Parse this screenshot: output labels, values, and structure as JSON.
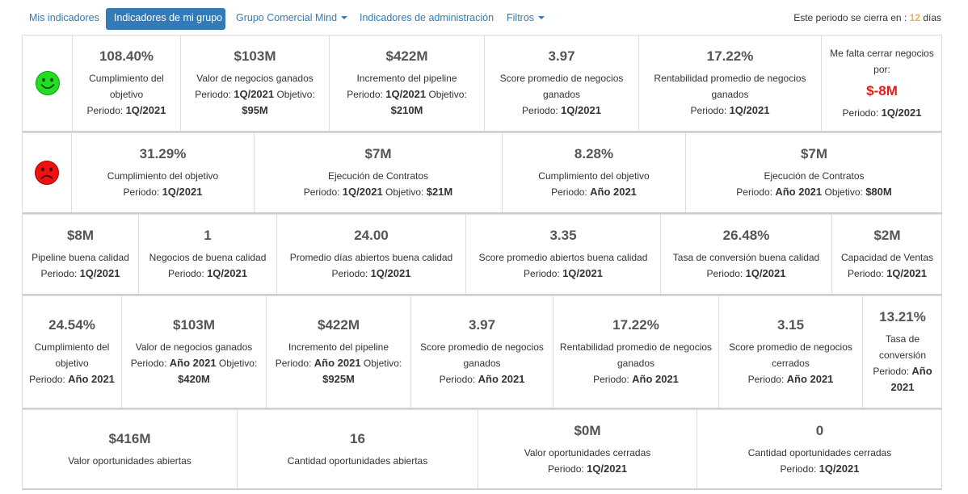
{
  "nav": {
    "items": [
      {
        "label": "Mis indicadores"
      },
      {
        "label": "Indicadores de mi grupo"
      },
      {
        "label": "Grupo Comercial Mind"
      },
      {
        "label": "Indicadores de administración"
      },
      {
        "label": "Filtros"
      }
    ],
    "period_prefix": "Este periodo se cierra en :",
    "period_days": "12",
    "period_suffix": "días"
  },
  "labels": {
    "periodo": "Periodo:",
    "objetivo": "Objetivo:"
  },
  "row1": {
    "status": "happy",
    "cells": [
      {
        "value": "108.40%",
        "label": "Cumplimiento del objetivo",
        "period": "1Q/2021"
      },
      {
        "value": "$103M",
        "label": "Valor de negocios ganados",
        "period": "1Q/2021",
        "target": "$95M"
      },
      {
        "value": "$422M",
        "label": "Incremento del pipeline",
        "period": "1Q/2021",
        "target": "$210M"
      },
      {
        "value": "3.97",
        "label": "Score promedio de negocios ganados",
        "period": "1Q/2021"
      },
      {
        "value": "17.22%",
        "label": "Rentabilidad promedio de negocios ganados",
        "period": "1Q/2021"
      },
      {
        "label": "Me falta cerrar negocios por:",
        "value": "$-8M",
        "period": "1Q/2021"
      }
    ]
  },
  "row2": {
    "status": "sad",
    "cells": [
      {
        "value": "31.29%",
        "label": "Cumplimiento del objetivo",
        "period": "1Q/2021"
      },
      {
        "value": "$7M",
        "label": "Ejecución de Contratos",
        "period": "1Q/2021",
        "target": "$21M"
      },
      {
        "value": "8.28%",
        "label": "Cumplimiento del objetivo",
        "period": "Año 2021"
      },
      {
        "value": "$7M",
        "label": "Ejecución de Contratos",
        "period": "Año 2021",
        "target": "$80M"
      }
    ]
  },
  "row3": {
    "cells": [
      {
        "value": "$8M",
        "label": "Pipeline buena calidad",
        "period": "1Q/2021"
      },
      {
        "value": "1",
        "label": "Negocios de buena calidad",
        "period": "1Q/2021"
      },
      {
        "value": "24.00",
        "label": "Promedio días abiertos buena calidad",
        "period": "1Q/2021"
      },
      {
        "value": "3.35",
        "label": "Score promedio abiertos buena calidad",
        "period": "1Q/2021"
      },
      {
        "value": "26.48%",
        "label": "Tasa de conversión buena calidad",
        "period": "1Q/2021"
      },
      {
        "value": "$2M",
        "label": "Capacidad de Ventas",
        "period": "1Q/2021"
      }
    ]
  },
  "row4": {
    "cells": [
      {
        "value": "24.54%",
        "label": "Cumplimiento del objetivo",
        "period": "Año 2021"
      },
      {
        "value": "$103M",
        "label": "Valor de negocios ganados",
        "period": "Año 2021",
        "target": "$420M"
      },
      {
        "value": "$422M",
        "label": "Incremento del pipeline",
        "period": "Año 2021",
        "target": "$925M"
      },
      {
        "value": "3.97",
        "label": "Score promedio de negocios ganados",
        "period": "Año 2021"
      },
      {
        "value": "17.22%",
        "label": "Rentabilidad promedio de negocios ganados",
        "period": "Año 2021"
      },
      {
        "value": "3.15",
        "label": "Score promedio de negocios cerrados",
        "period": "Año 2021"
      },
      {
        "value": "13.21%",
        "label": "Tasa de conversión",
        "period": "Año 2021"
      }
    ]
  },
  "row5": {
    "cells": [
      {
        "value": "$416M",
        "label": "Valor oportunidades abiertas"
      },
      {
        "value": "16",
        "label": "Cantidad oportunidades abiertas"
      },
      {
        "value": "$0M",
        "label": "Valor oportunidades cerradas",
        "period": "1Q/2021"
      },
      {
        "value": "0",
        "label": "Cantidad oportunidades cerradas",
        "period": "1Q/2021"
      }
    ]
  },
  "colors": {
    "accent": "#337ab7",
    "happy_face": "#22dd22",
    "sad_face": "#ee1111",
    "negative_value": "#e31b1b",
    "days_highlight": "#f0ad4e"
  }
}
